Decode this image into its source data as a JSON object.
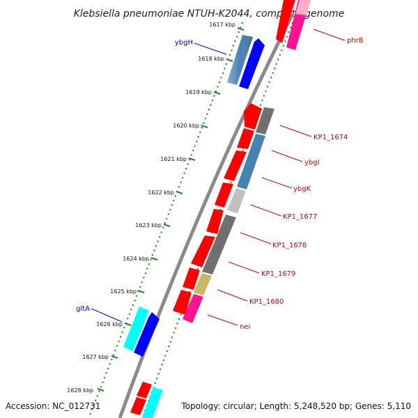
{
  "title": "Klebsiella pneumoniae NTUH-K2044, complete genome",
  "footer": {
    "accession": "Accession: NC_012731",
    "summary": "Topology: circular; Length: 5,248,520 bp; Genes: 5,110"
  },
  "ticks": [
    "1617 kbp",
    "1618 kbp",
    "1619 kbp",
    "1620 kbp",
    "1621 kbp",
    "1622 kbp",
    "1623 kbp",
    "1624 kbp",
    "1625 kbp",
    "1626 kbp",
    "1627 kbp",
    "1628 kbp"
  ],
  "colors": {
    "backbone": "#8a8a8a",
    "dots": "#1a8a1a",
    "cds": "#ff0000",
    "forward_gene": "#0000ff",
    "steel": "#4682b4",
    "gray": "#707070",
    "lightgray": "#c0c0c0",
    "khaki": "#c8b860",
    "pink": "#ff1493",
    "cyan": "#00ffff",
    "blue_label": "#0000cc",
    "red_label": "#cc0000"
  },
  "genes_left": [
    {
      "id": "ybgH",
      "label": "ybgH"
    },
    {
      "id": "gltA",
      "label": "gltA"
    }
  ],
  "genes_right": [
    {
      "id": "phrB",
      "label": "phrB"
    },
    {
      "id": "KP1_1674",
      "label": "KP1_1674"
    },
    {
      "id": "ybgI",
      "label": "ybgI"
    },
    {
      "id": "ybgK",
      "label": "ybgK"
    },
    {
      "id": "KP1_1677",
      "label": "KP1_1677"
    },
    {
      "id": "KP1_1678",
      "label": "KP1_1678"
    },
    {
      "id": "KP1_1679",
      "label": "KP1_1679"
    },
    {
      "id": "KP1_1680",
      "label": "KP1_1680"
    },
    {
      "id": "nei",
      "label": "nei"
    }
  ]
}
